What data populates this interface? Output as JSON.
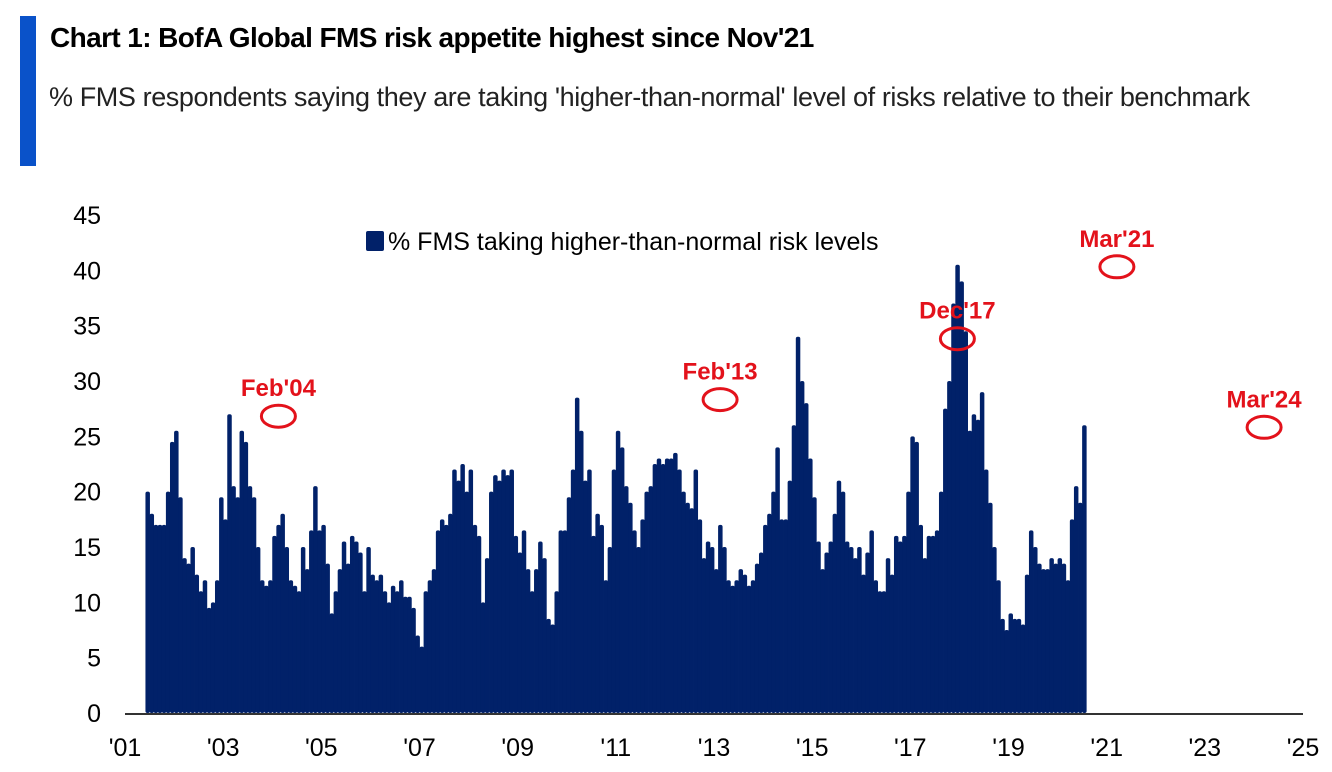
{
  "header": {
    "title": "Chart 1: BofA Global FMS risk appetite highest since Nov'21",
    "subtitle": "% FMS respondents saying they are taking 'higher-than-normal' level of risks relative to their benchmark",
    "accent_color": "#0a52c9"
  },
  "chart_data": {
    "type": "bar",
    "title": "Chart 1: BofA Global FMS risk appetite highest since Nov'21",
    "subtitle": "% FMS respondents saying they are taking 'higher-than-normal' level of risks relative to their benchmark",
    "xlabel": "",
    "ylabel": "",
    "ylim": [
      0,
      45
    ],
    "yticks": [
      0,
      5,
      10,
      15,
      20,
      25,
      30,
      35,
      40,
      45
    ],
    "xlim": [
      "Jan 2001",
      "Jan 2025"
    ],
    "xticks": [
      "'01",
      "'03",
      "'05",
      "'07",
      "'09",
      "'11",
      "'13",
      "'15",
      "'17",
      "'19",
      "'21",
      "'23",
      "'25"
    ],
    "grid": false,
    "legend": {
      "position": "top-center",
      "entries": [
        "% FMS taking higher-than-normal risk levels"
      ]
    },
    "bar_color": "#012169",
    "annotation_color": "#e3121b",
    "start_month": "Jun 2001",
    "frequency": "monthly",
    "series": [
      {
        "name": "% FMS taking higher-than-normal risk levels",
        "values": [
          20,
          18,
          17,
          17,
          17,
          20,
          24.5,
          25.5,
          19.5,
          14,
          13.5,
          15,
          12.5,
          11,
          12,
          9.5,
          10,
          12,
          19.5,
          17.5,
          27,
          20.5,
          19.5,
          25.5,
          24.5,
          20.5,
          19.5,
          15,
          12,
          11.5,
          12,
          16,
          17,
          18,
          15,
          12,
          11.5,
          11,
          15,
          13,
          16.5,
          20.5,
          16.5,
          17,
          13.5,
          9,
          11,
          13,
          15.5,
          13.5,
          16,
          15.5,
          14.5,
          11,
          15,
          12.5,
          12,
          12.5,
          11,
          10,
          11.5,
          11,
          12,
          10.5,
          10.5,
          9.5,
          7,
          6,
          11,
          12,
          13,
          16.5,
          17.5,
          17,
          18,
          22,
          21,
          22.5,
          20,
          22,
          17,
          16,
          10,
          14,
          20,
          21.5,
          21,
          22,
          21.5,
          22,
          16,
          14.5,
          16.5,
          13,
          11,
          13,
          15.5,
          14,
          8.5,
          8,
          11,
          16.5,
          16.5,
          19.5,
          22,
          28.5,
          25.5,
          21,
          22,
          16,
          18,
          17,
          12,
          15,
          22,
          25.5,
          24,
          20.5,
          19,
          16.5,
          15,
          17.5,
          20,
          20.5,
          22.5,
          23,
          22.5,
          23,
          23,
          23.5,
          22,
          20,
          19,
          18.5,
          22,
          17.5,
          14,
          15.5,
          15,
          13,
          17,
          15,
          12,
          11.5,
          12,
          13,
          12.5,
          11.5,
          12,
          13.5,
          14.5,
          17,
          18,
          20,
          24,
          17.5,
          17.5,
          21,
          26,
          34,
          30,
          28,
          23,
          19.5,
          15.5,
          13,
          14.5,
          15.5,
          18,
          21,
          20,
          15.5,
          15,
          14,
          15,
          12.5,
          14.5,
          16.5,
          12,
          11,
          11,
          14,
          12.5,
          16,
          15.5,
          16,
          20,
          25,
          24.5,
          17,
          14,
          16,
          16,
          16.5,
          20,
          27.5,
          30,
          37,
          40.5,
          39,
          34.5,
          25.5,
          27,
          26.5,
          29,
          22,
          19,
          15,
          12,
          8.5,
          7.5,
          9,
          8.5,
          8.5,
          8,
          12.5,
          16.5,
          15,
          13.5,
          13,
          13,
          14,
          13.5,
          14,
          13.5,
          12,
          17.5,
          20.5,
          19,
          26
        ]
      }
    ],
    "annotations": [
      {
        "label": "Feb'04",
        "month": "Feb 2004",
        "value": 27
      },
      {
        "label": "Feb'13",
        "month": "Feb 2013",
        "value": 28.5
      },
      {
        "label": "Dec'17",
        "month": "Dec 2017",
        "value": 34
      },
      {
        "label": "Mar'21",
        "month": "Mar 2021",
        "value": 40.5
      },
      {
        "label": "Mar'24",
        "month": "Mar 2024",
        "value": 26
      }
    ]
  }
}
